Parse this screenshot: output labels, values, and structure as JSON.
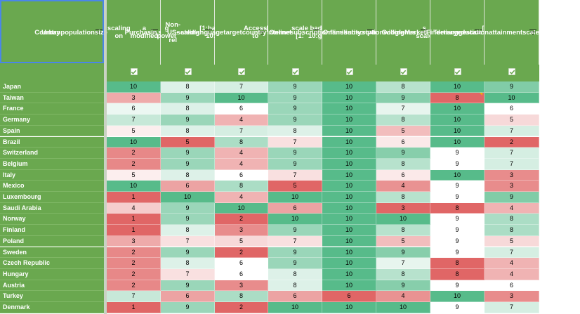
{
  "header": {
    "country_label": "Country",
    "columns": [
      "Urban population size scaling on a modified scale [1:bad-10: good]",
      "Purchasing power scaling [1:bad-10: good]",
      "Non-US-related language target country [1:bad-10: good]",
      "Access to internet scale [1: bad-10:good]",
      "Online subscription on familiarity scale [1:bad-10: good]",
      "Online subscription on willingness scale [1:bad-10: good]",
      "Google Market Finder suggestion [1:bad-10: good]",
      "Tertiary education attainment scale [1:bad-10: good]"
    ],
    "header_lines": [
      [
        "Urban",
        "population",
        "size",
        "scaling on",
        "a modified",
        "scale",
        "[1:bad-10:",
        "good]"
      ],
      [
        "Purchasin",
        "g power",
        "scaling",
        "[1:bad-10:",
        "good]"
      ],
      [
        "Non-US-rel",
        "ated",
        "language",
        "target",
        "country",
        "[1:bad-10:",
        "good]"
      ],
      [
        "Access to",
        "internet",
        "scale [1:",
        "bad-10:go",
        "od]"
      ],
      [
        "Online",
        "subscripti",
        "on",
        "familiarity",
        "scale",
        "[1:bad-10:",
        "good]"
      ],
      [
        "Online",
        "subscripti",
        "on",
        "willingnes",
        "s scale",
        "[1:bad-10:",
        "good]"
      ],
      [
        "Google",
        "Market",
        "Finder",
        "suggestion",
        "[1:bad-10:",
        "good]"
      ],
      [
        "Tertiary",
        "education",
        "attainment",
        "scale",
        "[1:bad-10:",
        "good]"
      ]
    ]
  },
  "icons": {
    "filter": "filter-lines-icon",
    "checkbox": "checkbox-checked-icon"
  },
  "colors": {
    "header_bg": "#6aa84f",
    "header_text": "#ffffff",
    "scale_low": "#e06666",
    "scale_mid": "#ffffff",
    "scale_high": "#57bb8a",
    "selection": "#4a86e8"
  },
  "rows": [
    {
      "country": "Japan",
      "values": [
        10,
        8,
        7,
        9,
        10,
        8,
        10,
        9
      ]
    },
    {
      "country": "Taiwan",
      "values": [
        3,
        9,
        10,
        9,
        10,
        9,
        8,
        10
      ]
    },
    {
      "country": "France",
      "values": [
        6,
        8,
        6,
        9,
        10,
        7,
        10,
        6
      ]
    },
    {
      "country": "Germany",
      "values": [
        7,
        9,
        4,
        9,
        10,
        8,
        10,
        5
      ]
    },
    {
      "country": "Spain",
      "values": [
        5,
        8,
        7,
        8,
        10,
        5,
        10,
        7
      ]
    },
    {
      "country": "Brazil",
      "values": [
        10,
        5,
        8,
        7,
        10,
        6,
        10,
        2
      ]
    },
    {
      "country": "Switzerland",
      "values": [
        2,
        9,
        4,
        9,
        10,
        9,
        9,
        7
      ]
    },
    {
      "country": "Belgium",
      "values": [
        2,
        9,
        4,
        9,
        10,
        8,
        9,
        7
      ]
    },
    {
      "country": "Italy",
      "values": [
        5,
        8,
        6,
        7,
        10,
        6,
        10,
        3
      ]
    },
    {
      "country": "Mexico",
      "values": [
        10,
        6,
        8,
        5,
        10,
        4,
        9,
        3
      ]
    },
    {
      "country": "Luxembourg",
      "values": [
        1,
        10,
        4,
        10,
        10,
        8,
        9,
        9
      ]
    },
    {
      "country": "Saudi Arabia",
      "values": [
        4,
        9,
        10,
        6,
        10,
        3,
        8,
        4
      ]
    },
    {
      "country": "Norway",
      "values": [
        1,
        9,
        2,
        10,
        10,
        10,
        9,
        8
      ]
    },
    {
      "country": "Finland",
      "values": [
        1,
        8,
        3,
        9,
        10,
        8,
        9,
        8
      ]
    },
    {
      "country": "Poland",
      "values": [
        3,
        7,
        5,
        7,
        10,
        5,
        9,
        5
      ]
    },
    {
      "country": "Sweden",
      "values": [
        2,
        9,
        2,
        9,
        10,
        9,
        9,
        7
      ]
    },
    {
      "country": "Czech Republic",
      "values": [
        2,
        8,
        6,
        9,
        10,
        7,
        8,
        4
      ]
    },
    {
      "country": "Hungary",
      "values": [
        2,
        7,
        6,
        8,
        10,
        8,
        8,
        4
      ]
    },
    {
      "country": "Austria",
      "values": [
        2,
        9,
        3,
        8,
        10,
        9,
        9,
        6
      ]
    },
    {
      "country": "Turkey",
      "values": [
        7,
        6,
        8,
        6,
        6,
        4,
        10,
        3
      ]
    },
    {
      "country": "Denmark",
      "values": [
        1,
        9,
        2,
        10,
        10,
        10,
        9,
        7
      ]
    }
  ]
}
